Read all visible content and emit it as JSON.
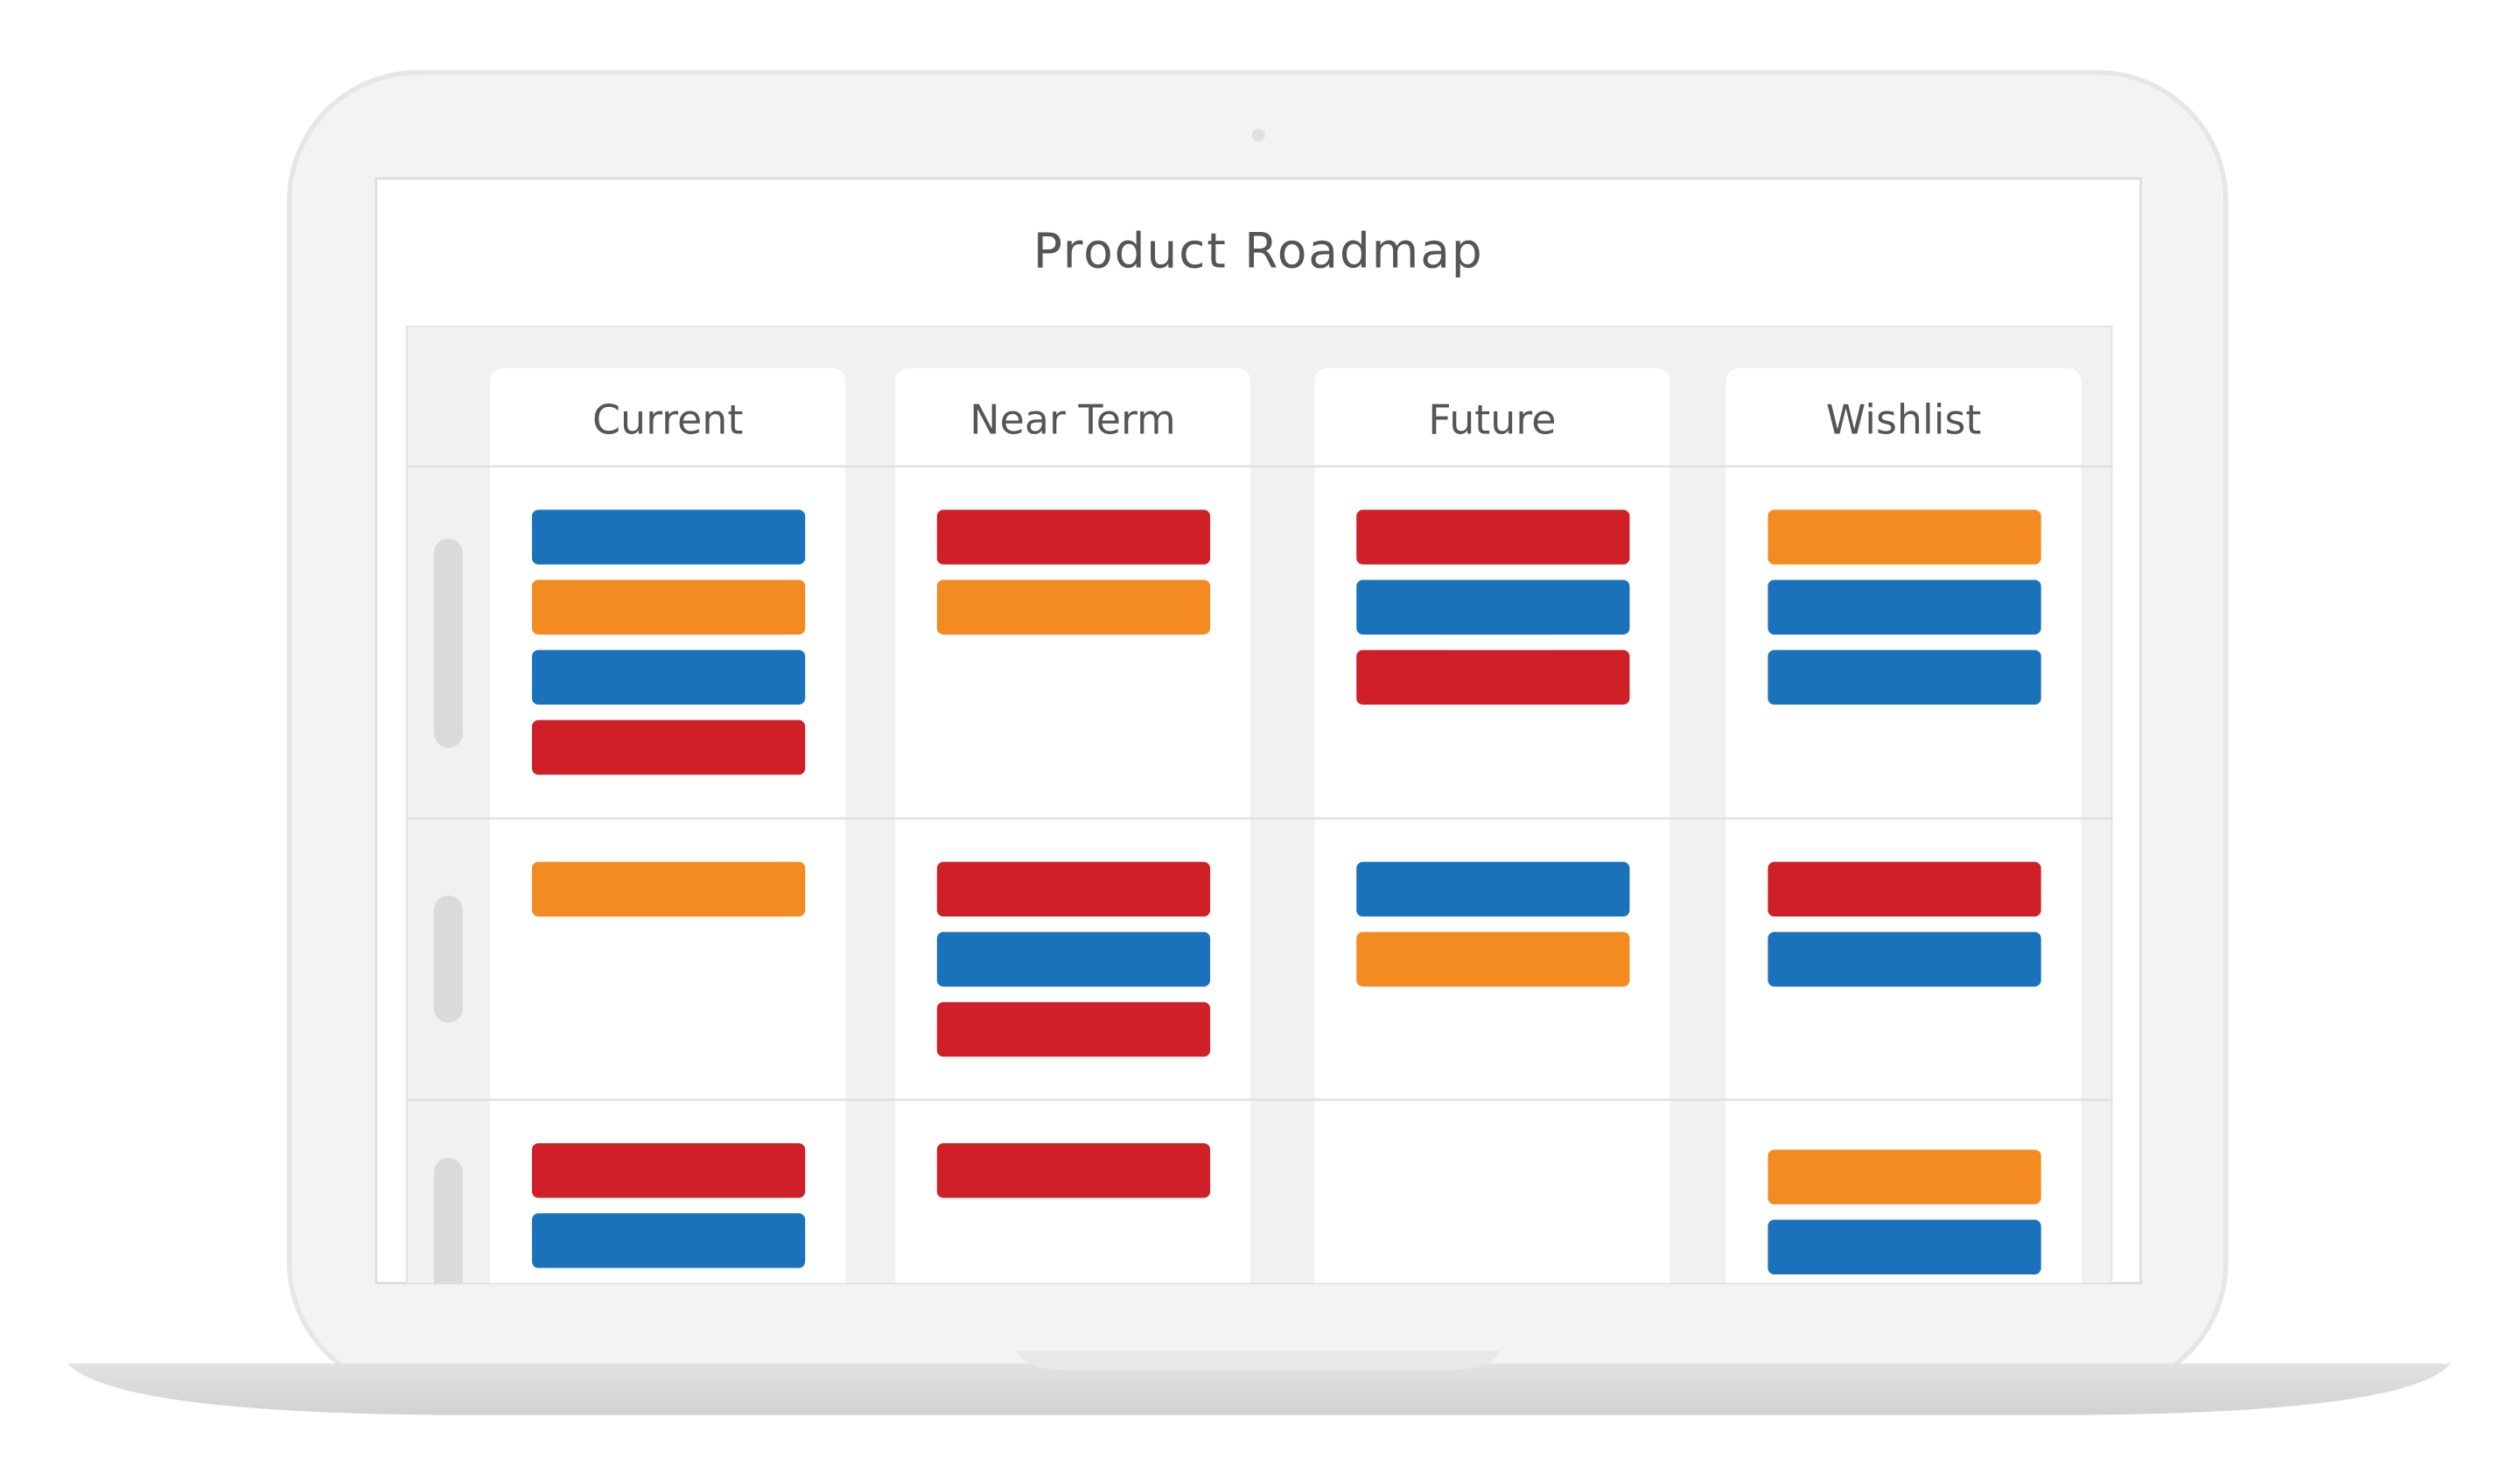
{
  "title": "Product Roadmap",
  "columns": [
    "Current",
    "Near Term",
    "Future",
    "Wishlist"
  ],
  "rows": [
    [
      [
        "#1a73ba",
        "#f48b20",
        "#1a73ba",
        "#cf2027"
      ],
      [
        "#cf2027",
        "#f48b20"
      ],
      [
        "#cf2027",
        "#1a73ba",
        "#cf2027"
      ],
      [
        "#f48b20",
        "#1a73ba",
        "#1a73ba"
      ]
    ],
    [
      [
        "#f48b20"
      ],
      [
        "#cf2027",
        "#1a73ba",
        "#cf2027"
      ],
      [
        "#1a73ba",
        "#f48b20"
      ],
      [
        "#cf2027",
        "#1a73ba"
      ]
    ],
    [
      [
        "#cf2027",
        "#1a73ba"
      ],
      [
        "#cf2027"
      ],
      [],
      [
        "#f48b20",
        "#1a73ba"
      ]
    ]
  ]
}
